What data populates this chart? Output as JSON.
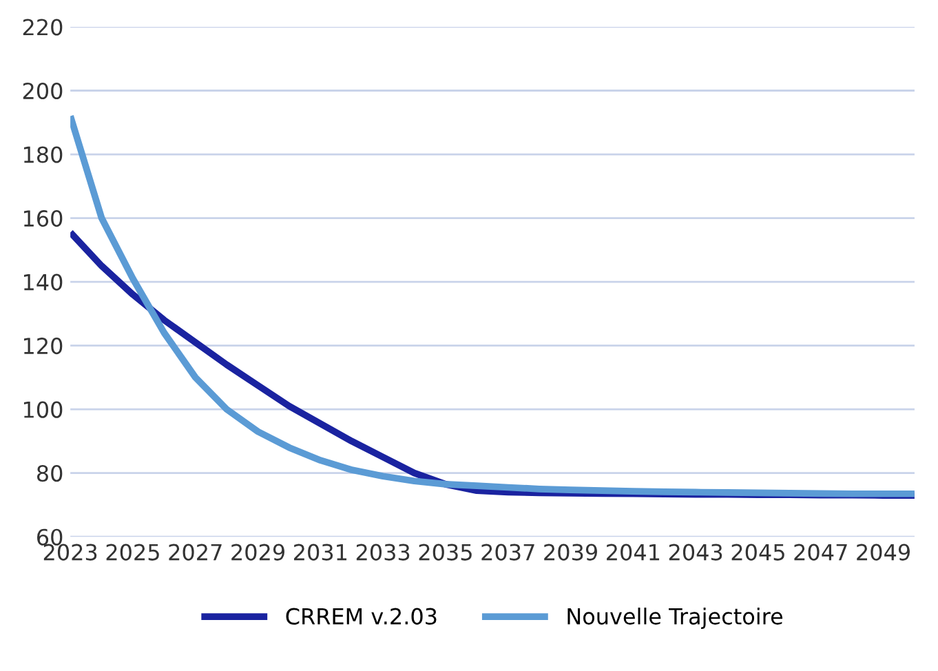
{
  "chart_data": {
    "type": "line",
    "x": [
      2023,
      2024,
      2025,
      2026,
      2027,
      2028,
      2029,
      2030,
      2031,
      2032,
      2033,
      2034,
      2035,
      2036,
      2037,
      2038,
      2039,
      2040,
      2041,
      2042,
      2043,
      2044,
      2045,
      2046,
      2047,
      2048,
      2049,
      2050
    ],
    "series": [
      {
        "name": "CRREM v.2.03",
        "color": "#1a23a0",
        "values": [
          155.5,
          145,
          136,
          128,
          121,
          114,
          107.5,
          101,
          95.5,
          90,
          85,
          80,
          76.5,
          74.5,
          74,
          73.8,
          73.7,
          73.6,
          73.5,
          73.4,
          73.3,
          73.3,
          73.2,
          73.2,
          73.1,
          73.1,
          73,
          73
        ]
      },
      {
        "name": "Nouvelle Trajectoire",
        "color": "#5b9bd5",
        "values": [
          192,
          160,
          141,
          124,
          110,
          100,
          93,
          88,
          84,
          81,
          79,
          77.5,
          76.5,
          76,
          75.5,
          75,
          74.7,
          74.5,
          74.3,
          74.1,
          74,
          73.9,
          73.8,
          73.7,
          73.6,
          73.5,
          73.5,
          73.5
        ]
      }
    ],
    "xlim": [
      2023,
      2050
    ],
    "xticks": [
      2023,
      2025,
      2027,
      2029,
      2031,
      2033,
      2035,
      2037,
      2039,
      2041,
      2043,
      2045,
      2047,
      2049
    ],
    "ylim": [
      60,
      220
    ],
    "yticks": [
      60,
      80,
      100,
      120,
      140,
      160,
      180,
      200,
      220
    ],
    "grid": "y",
    "legend": "bottom",
    "marker": "none",
    "line_style": "solid"
  }
}
